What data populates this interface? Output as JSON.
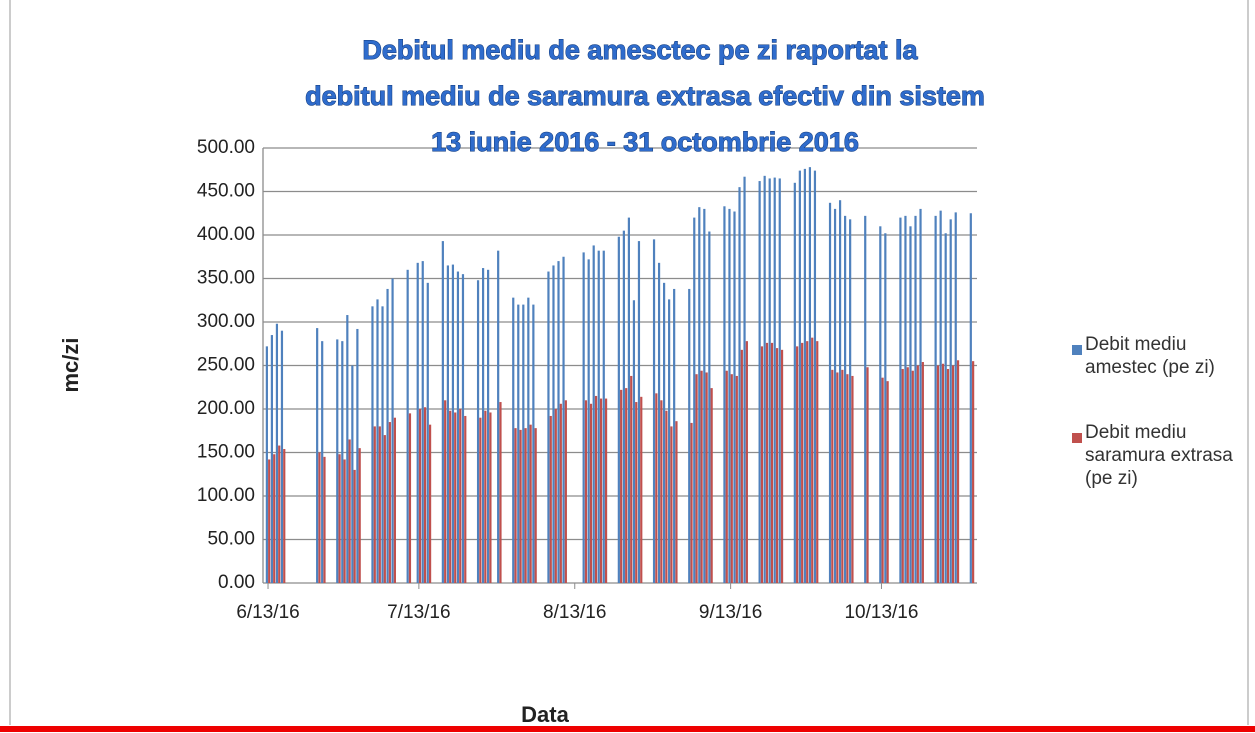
{
  "chart_data": {
    "type": "bar",
    "title": [
      "Debitul mediu de amesctec pe zi raportat la",
      "debitul mediu de saramura extrasa efectiv din sistem",
      "13 iunie 2016 - 31 octombrie 2016"
    ],
    "x_label": "Data",
    "y_label": "mc/zi",
    "x": [
      "2016-06-13",
      "2016-06-14",
      "2016-06-15",
      "2016-06-16",
      "2016-06-23",
      "2016-06-24",
      "2016-06-27",
      "2016-06-28",
      "2016-06-29",
      "2016-06-30",
      "2016-07-01",
      "2016-07-04",
      "2016-07-05",
      "2016-07-06",
      "2016-07-07",
      "2016-07-08",
      "2016-07-11",
      "2016-07-13",
      "2016-07-14",
      "2016-07-15",
      "2016-07-18",
      "2016-07-19",
      "2016-07-20",
      "2016-07-21",
      "2016-07-22",
      "2016-07-25",
      "2016-07-26",
      "2016-07-27",
      "2016-07-29",
      "2016-08-01",
      "2016-08-02",
      "2016-08-03",
      "2016-08-04",
      "2016-08-05",
      "2016-08-08",
      "2016-08-09",
      "2016-08-10",
      "2016-08-11",
      "2016-08-15",
      "2016-08-16",
      "2016-08-17",
      "2016-08-18",
      "2016-08-19",
      "2016-08-22",
      "2016-08-23",
      "2016-08-24",
      "2016-08-25",
      "2016-08-26",
      "2016-08-29",
      "2016-08-30",
      "2016-08-31",
      "2016-09-01",
      "2016-09-02",
      "2016-09-05",
      "2016-09-06",
      "2016-09-07",
      "2016-09-08",
      "2016-09-09",
      "2016-09-12",
      "2016-09-13",
      "2016-09-14",
      "2016-09-15",
      "2016-09-16",
      "2016-09-19",
      "2016-09-20",
      "2016-09-21",
      "2016-09-22",
      "2016-09-23",
      "2016-09-26",
      "2016-09-27",
      "2016-09-28",
      "2016-09-29",
      "2016-09-30",
      "2016-10-03",
      "2016-10-04",
      "2016-10-05",
      "2016-10-06",
      "2016-10-07",
      "2016-10-10",
      "2016-10-13",
      "2016-10-14",
      "2016-10-17",
      "2016-10-18",
      "2016-10-19",
      "2016-10-20",
      "2016-10-21",
      "2016-10-24",
      "2016-10-25",
      "2016-10-26",
      "2016-10-27",
      "2016-10-28",
      "2016-10-31"
    ],
    "series": [
      {
        "name": "Debit mediu amestec (pe zi)",
        "color": "#4f81bd",
        "values": [
          272,
          285,
          298,
          290,
          293,
          278,
          280,
          278,
          308,
          250,
          292,
          318,
          326,
          318,
          338,
          350,
          360,
          368,
          370,
          345,
          393,
          365,
          366,
          358,
          355,
          348,
          362,
          360,
          382,
          328,
          320,
          320,
          328,
          320,
          358,
          365,
          370,
          375,
          380,
          372,
          388,
          382,
          382,
          398,
          405,
          420,
          325,
          393,
          395,
          368,
          345,
          326,
          338,
          338,
          420,
          432,
          430,
          404,
          433,
          430,
          427,
          455,
          467,
          462,
          468,
          465,
          466,
          465,
          460,
          474,
          476,
          478,
          474,
          437,
          430,
          440,
          422,
          418,
          422,
          410,
          402,
          420,
          422,
          410,
          422,
          430,
          422,
          428,
          402,
          418,
          426,
          425
        ]
      },
      {
        "name": "Debit mediu saramura extrasa (pe zi)",
        "color": "#c0504d",
        "values": [
          142,
          148,
          158,
          154,
          150,
          145,
          148,
          142,
          165,
          130,
          155,
          180,
          180,
          170,
          185,
          190,
          195,
          200,
          202,
          182,
          210,
          198,
          196,
          200,
          192,
          190,
          198,
          196,
          208,
          178,
          176,
          178,
          182,
          178,
          192,
          200,
          206,
          210,
          210,
          206,
          215,
          212,
          212,
          222,
          224,
          238,
          208,
          214,
          218,
          210,
          198,
          180,
          186,
          184,
          240,
          244,
          242,
          224,
          244,
          240,
          238,
          268,
          278,
          272,
          276,
          276,
          270,
          268,
          272,
          276,
          278,
          282,
          278,
          245,
          242,
          245,
          240,
          238,
          248,
          236,
          232,
          246,
          248,
          244,
          250,
          254,
          250,
          252,
          246,
          250,
          256,
          255
        ]
      }
    ],
    "xlim": [
      "2016-06-12",
      "2016-11-01"
    ],
    "xticks": [
      {
        "value": "2016-06-13",
        "label": "6/13/16"
      },
      {
        "value": "2016-07-13",
        "label": "7/13/16"
      },
      {
        "value": "2016-08-13",
        "label": "8/13/16"
      },
      {
        "value": "2016-09-13",
        "label": "9/13/16"
      },
      {
        "value": "2016-10-13",
        "label": "10/13/16"
      }
    ],
    "ylim": [
      0,
      500
    ],
    "yticks": [
      {
        "value": 0,
        "label": "0.00"
      },
      {
        "value": 50,
        "label": "50.00"
      },
      {
        "value": 100,
        "label": "100.00"
      },
      {
        "value": 150,
        "label": "150.00"
      },
      {
        "value": 200,
        "label": "200.00"
      },
      {
        "value": 250,
        "label": "250.00"
      },
      {
        "value": 300,
        "label": "300.00"
      },
      {
        "value": 350,
        "label": "350.00"
      },
      {
        "value": 400,
        "label": "400.00"
      },
      {
        "value": 450,
        "label": "450.00"
      },
      {
        "value": 500,
        "label": "500.00"
      }
    ],
    "grid": true,
    "legend": "right"
  }
}
